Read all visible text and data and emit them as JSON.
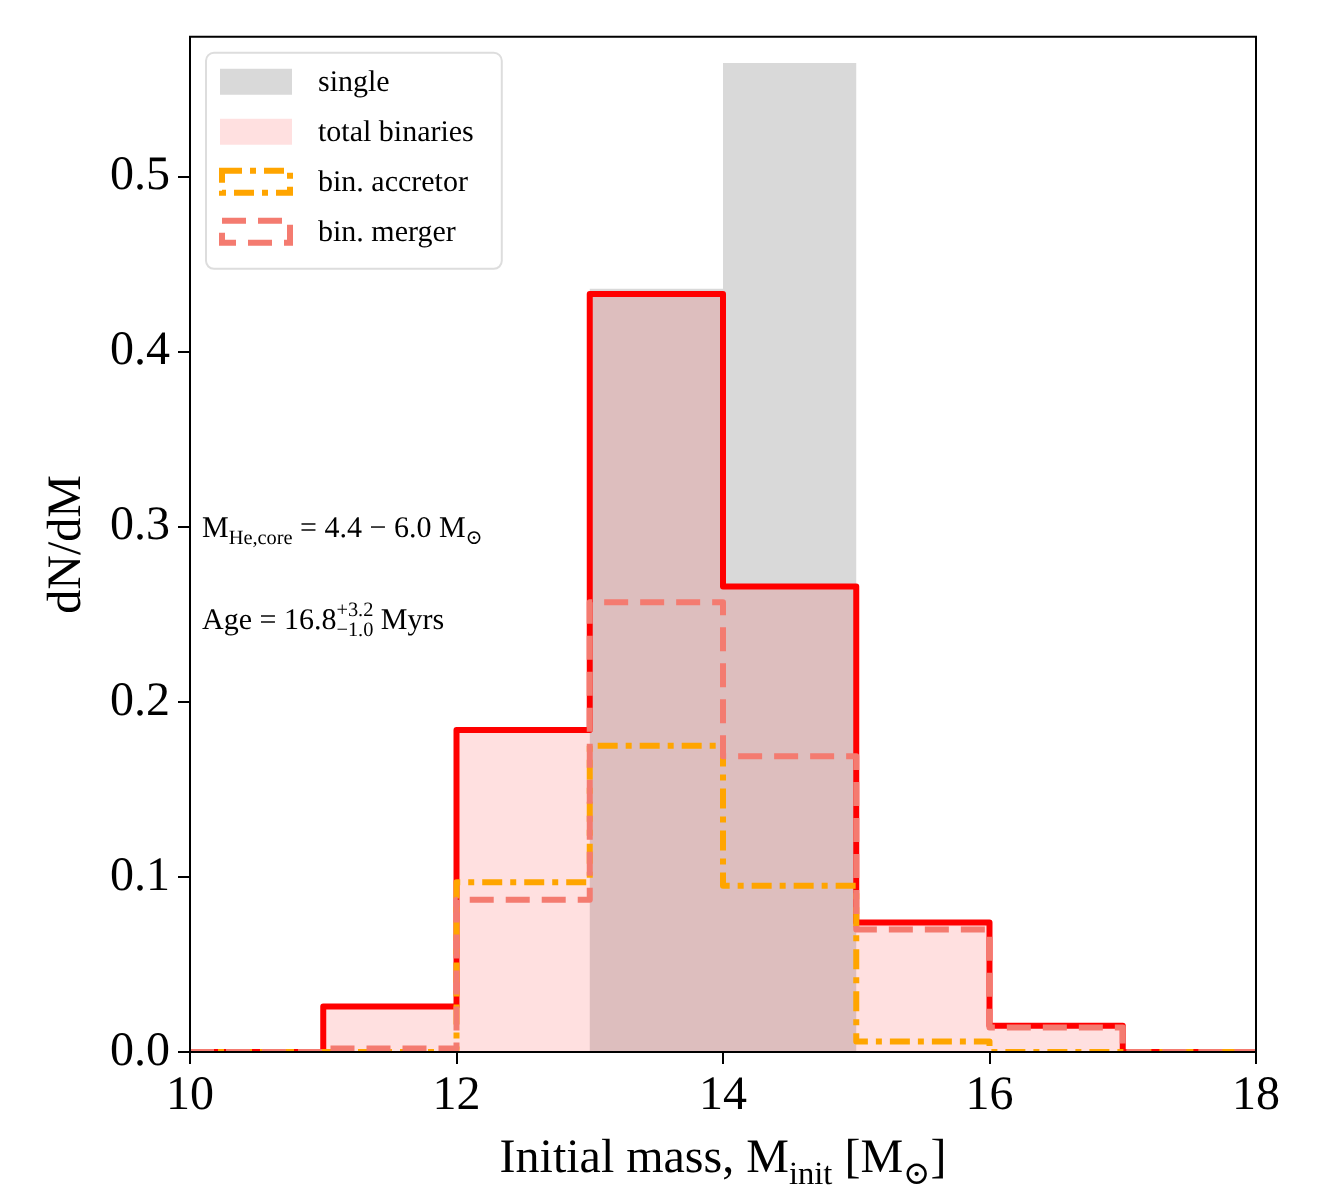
{
  "chart_data": {
    "type": "histogram",
    "xlabel": "Initial mass, M$_{init}$ [M$_{⊙}$]",
    "ylabel": "dN/dM",
    "bins": [
      10,
      11,
      12,
      13,
      14,
      15,
      16,
      17,
      18
    ],
    "series": [
      {
        "name": "single",
        "color": "#d9d9d9",
        "values": [
          0,
          0,
          0,
          0.436,
          0.565,
          0,
          0,
          0
        ]
      },
      {
        "name": "total binaries",
        "color": "#ff0000",
        "values": [
          0,
          0.026,
          0.184,
          0.433,
          0.266,
          0.074,
          0.015,
          0
        ]
      },
      {
        "name": "bin. accretor",
        "color": "#ffa500",
        "line_style": "dashdot",
        "values": [
          0,
          0,
          0.097,
          0.175,
          0.095,
          0.006,
          0,
          0
        ]
      },
      {
        "name": "bin. merger",
        "color": "#f47b70",
        "line_style": "dashed",
        "values": [
          0,
          0.002,
          0.087,
          0.257,
          0.169,
          0.07,
          0.014,
          0
        ]
      }
    ],
    "xlim": [
      10,
      18
    ],
    "xticks": [
      10,
      12,
      14,
      16,
      18
    ],
    "ylim": [
      0,
      0.58
    ],
    "yticks": [
      {
        "value": 0,
        "label": "0.0"
      },
      0.1,
      0.2,
      0.3,
      0.4,
      0.5
    ],
    "grid": false,
    "legend": "top left",
    "annotations": [
      "M$_{He,core}$ = 4.4 − 6.0 M$_{⊙}$",
      "Age = 16.8$^{+3.2}$$_{−1.0}$ Myrs"
    ]
  }
}
